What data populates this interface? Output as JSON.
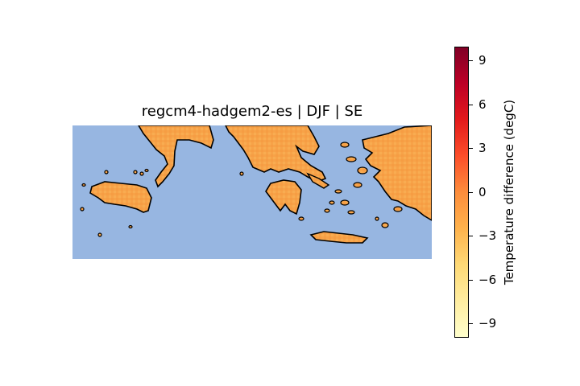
{
  "title": "regcm4-hadgem2-es | DJF | SE",
  "colorbar": {
    "label": "Temperature difference (degC)",
    "ticks": [
      "9",
      "6",
      "3",
      "0",
      "−3",
      "−6",
      "−9"
    ],
    "range": [
      -10,
      10
    ],
    "colormap": [
      "#ffffcc",
      "#ffeda0",
      "#fed976",
      "#feb24c",
      "#fd8d3c",
      "#fc4e2a",
      "#e31a1c",
      "#bd0026",
      "#800026"
    ]
  },
  "map": {
    "sea_color": "#97b6e1",
    "land_fill": "#f7a248",
    "coastline_color": "#000000",
    "season": "DJF",
    "region": "SE"
  }
}
